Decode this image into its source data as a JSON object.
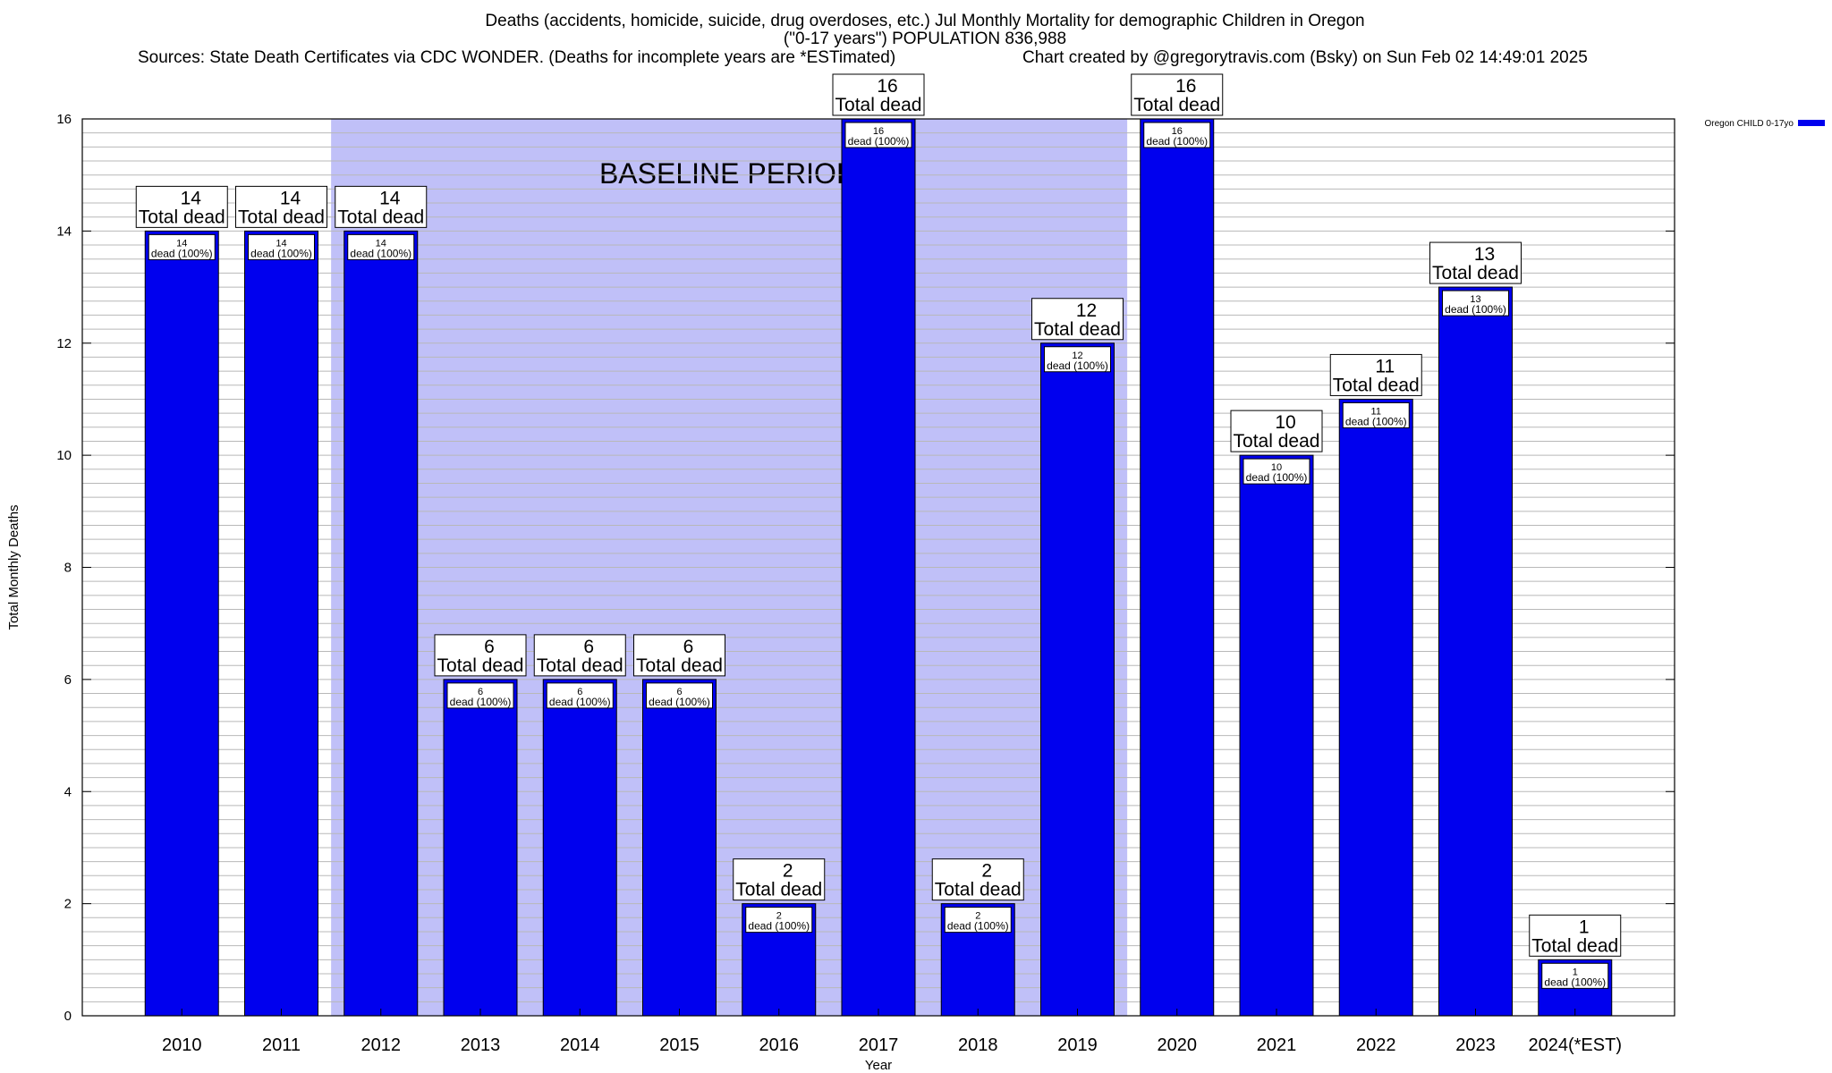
{
  "title_line1": "Deaths (accidents, homicide, suicide, drug overdoses, etc.) Jul Monthly Mortality for demographic Children in Oregon",
  "title_line2": "(\"0-17 years\") POPULATION 836,988",
  "sources": "Sources: State Death Certificates via CDC WONDER. (Deaths for incomplete years are *ESTimated)",
  "credit": "Chart created by @gregorytravis.com (Bsky) on Sun Feb 02 14:49:01 2025",
  "baseline_label": "BASELINE PERIOD",
  "total_label": "Total dead",
  "inner_label": "dead (100%)",
  "legend_label": "Oregon CHILD 0-17yo",
  "colors": {
    "bar": "#0000ee",
    "baseline": "#c0c0f8",
    "grid": "#b8b8b8"
  },
  "chart_data": {
    "type": "bar",
    "categories": [
      "2010",
      "2011",
      "2012",
      "2013",
      "2014",
      "2015",
      "2016",
      "2017",
      "2018",
      "2019",
      "2020",
      "2021",
      "2022",
      "2023",
      "2024(*EST)"
    ],
    "series": [
      {
        "name": "Oregon CHILD 0-17yo",
        "values": [
          14,
          14,
          14,
          6,
          6,
          6,
          2,
          16,
          2,
          12,
          16,
          10,
          11,
          13,
          1
        ]
      }
    ],
    "xlabel": "Year",
    "ylabel": "Total Monthly Deaths",
    "ylim": [
      0,
      16
    ],
    "yticks": [
      0,
      2,
      4,
      6,
      8,
      10,
      12,
      14,
      16
    ],
    "baseline_period": [
      "2012",
      "2019"
    ],
    "legend_position": "top-right",
    "grid": true
  }
}
